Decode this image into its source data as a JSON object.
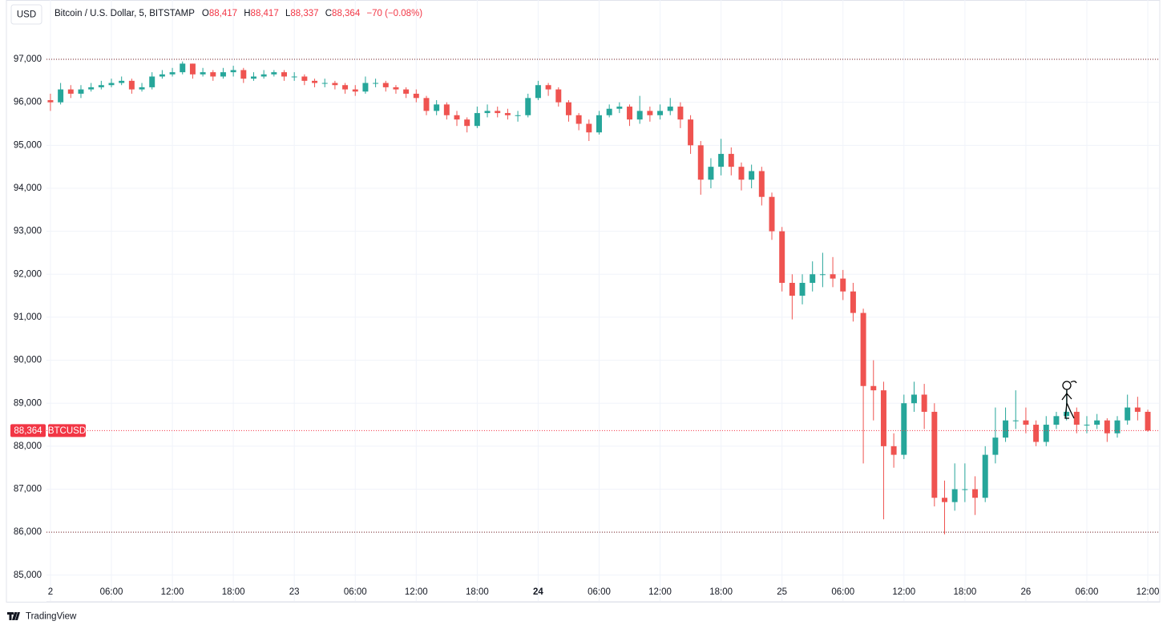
{
  "header": {
    "currency": "USD",
    "title": "Bitcoin / U.S. Dollar, 5, BITSTAMP",
    "ohlc": [
      {
        "label": "O",
        "value": "88,417"
      },
      {
        "label": "H",
        "value": "88,417"
      },
      {
        "label": "L",
        "value": "88,337"
      },
      {
        "label": "C",
        "value": "88,364"
      }
    ],
    "change": "−70 (−0.08%)"
  },
  "brand": "TradingView",
  "chart_data": {
    "type": "candlestick",
    "up_color": "#26a69a",
    "down_color": "#ef5350",
    "open": [
      96050,
      96000,
      96300,
      96200,
      96300,
      96350,
      96400,
      96450,
      96500,
      96300,
      96350,
      96600,
      96650,
      96700,
      96900,
      96650,
      96700,
      96600,
      96700,
      96750,
      96550,
      96600,
      96650,
      96700,
      96600,
      96600,
      96500,
      96450,
      96450,
      96400,
      96300,
      96250,
      96450,
      96450,
      96350,
      96300,
      96200,
      96100,
      95800,
      95950,
      95700,
      95600,
      95450,
      95750,
      95800,
      95750,
      95700,
      95700,
      96100,
      96400,
      96300,
      96000,
      95700,
      95500,
      95300,
      95700,
      95850,
      95900,
      95600,
      95800,
      95700,
      95800,
      95900,
      95600,
      95000,
      94200,
      94500,
      94800,
      94500,
      94200,
      94400,
      93800,
      93000,
      91800,
      91500,
      91800,
      92000,
      92000,
      91900,
      91600,
      91100,
      89400,
      89300,
      88000,
      87800,
      89000,
      89200,
      88800,
      86800,
      86700,
      87000,
      87000,
      86800,
      87800,
      88200,
      88600,
      88600,
      88500,
      88100,
      88500,
      88700,
      88800,
      88500,
      88500,
      88600,
      88300,
      88600,
      88900,
      88800
    ],
    "high": [
      96200,
      96450,
      96400,
      96400,
      96450,
      96500,
      96550,
      96600,
      96550,
      96450,
      96700,
      96750,
      96800,
      96950,
      96900,
      96800,
      96750,
      96800,
      96850,
      96800,
      96700,
      96750,
      96750,
      96750,
      96700,
      96650,
      96550,
      96550,
      96500,
      96450,
      96400,
      96600,
      96550,
      96500,
      96400,
      96350,
      96300,
      96150,
      96050,
      96000,
      95800,
      95650,
      95900,
      95950,
      95900,
      95850,
      95800,
      96200,
      96500,
      96450,
      96350,
      96050,
      95750,
      95600,
      95800,
      95950,
      96000,
      95950,
      96150,
      95900,
      95950,
      96100,
      96000,
      95700,
      95100,
      94700,
      95150,
      94950,
      94600,
      94550,
      94500,
      93900,
      93100,
      92000,
      92000,
      92300,
      92500,
      92400,
      92100,
      91800,
      91200,
      90000,
      89500,
      88300,
      89200,
      89500,
      89450,
      89000,
      87200,
      87600,
      87600,
      87300,
      88000,
      88900,
      88900,
      89300,
      88900,
      88600,
      88700,
      88800,
      89300,
      88900,
      88700,
      88750,
      88650,
      88700,
      89200,
      89150,
      88850
    ],
    "low": [
      95800,
      95950,
      96100,
      96100,
      96250,
      96300,
      96350,
      96400,
      96200,
      96250,
      96300,
      96550,
      96600,
      96650,
      96550,
      96600,
      96500,
      96550,
      96600,
      96450,
      96500,
      96550,
      96600,
      96500,
      96500,
      96400,
      96350,
      96350,
      96300,
      96200,
      96150,
      96200,
      96350,
      96250,
      96200,
      96100,
      96000,
      95700,
      95700,
      95600,
      95450,
      95300,
      95400,
      95650,
      95650,
      95600,
      95550,
      95650,
      96050,
      96150,
      95900,
      95550,
      95350,
      95100,
      95250,
      95650,
      95750,
      95450,
      95500,
      95550,
      95600,
      95700,
      95400,
      94800,
      93850,
      94000,
      94300,
      94300,
      93950,
      94000,
      93600,
      92800,
      91600,
      90950,
      91300,
      91600,
      91700,
      91700,
      91400,
      90900,
      87600,
      88600,
      86300,
      87500,
      87700,
      88800,
      88400,
      86600,
      85950,
      86500,
      86700,
      86400,
      86700,
      87600,
      88100,
      88400,
      88300,
      88000,
      88000,
      88400,
      88600,
      88300,
      88300,
      88400,
      88100,
      88200,
      88500,
      88600,
      88337
    ],
    "close": [
      96000,
      96300,
      96200,
      96300,
      96350,
      96400,
      96450,
      96500,
      96300,
      96350,
      96600,
      96650,
      96700,
      96900,
      96650,
      96700,
      96600,
      96700,
      96750,
      96550,
      96600,
      96650,
      96700,
      96600,
      96600,
      96500,
      96450,
      96450,
      96400,
      96300,
      96250,
      96450,
      96450,
      96350,
      96300,
      96200,
      96100,
      95800,
      95950,
      95700,
      95600,
      95450,
      95750,
      95800,
      95750,
      95700,
      95700,
      96100,
      96400,
      96300,
      96000,
      95700,
      95500,
      95300,
      95700,
      95850,
      95900,
      95600,
      95800,
      95700,
      95800,
      95900,
      95600,
      95000,
      94200,
      94500,
      94800,
      94500,
      94200,
      94400,
      93800,
      93000,
      91800,
      91500,
      91800,
      92000,
      92000,
      91900,
      91600,
      91100,
      89400,
      89300,
      88000,
      87800,
      89000,
      89200,
      88800,
      86800,
      86700,
      87000,
      87000,
      86800,
      87800,
      88200,
      88600,
      88600,
      88500,
      88100,
      88500,
      88700,
      88800,
      88500,
      88500,
      88600,
      88300,
      88600,
      88900,
      88800,
      88364
    ],
    "xlim": [
      -0.39,
      109.18
    ],
    "xticks": [
      {
        "value": 0,
        "label": "2"
      },
      {
        "value": 6,
        "label": "06:00"
      },
      {
        "value": 12,
        "label": "12:00"
      },
      {
        "value": 18,
        "label": "18:00"
      },
      {
        "value": 24,
        "label": "23"
      },
      {
        "value": 30,
        "label": "06:00"
      },
      {
        "value": 36,
        "label": "12:00"
      },
      {
        "value": 42,
        "label": "18:00"
      },
      {
        "value": 48,
        "label": "24"
      },
      {
        "value": 54,
        "label": "06:00"
      },
      {
        "value": 60,
        "label": "12:00"
      },
      {
        "value": 66,
        "label": "18:00"
      },
      {
        "value": 72,
        "label": "25"
      },
      {
        "value": 78,
        "label": "06:00"
      },
      {
        "value": 84,
        "label": "12:00"
      },
      {
        "value": 90,
        "label": "18:00"
      },
      {
        "value": 96,
        "label": "26"
      },
      {
        "value": 102,
        "label": "06:00"
      },
      {
        "value": 108,
        "label": "12:00"
      }
    ],
    "ylim": [
      84400,
      98380
    ],
    "yticks": [
      {
        "value": 85000,
        "label": "85,000"
      },
      {
        "value": 86000,
        "label": "86,000"
      },
      {
        "value": 87000,
        "label": "87,000"
      },
      {
        "value": 88000,
        "label": "88,000"
      },
      {
        "value": 89000,
        "label": "89,000"
      },
      {
        "value": 90000,
        "label": "90,000"
      },
      {
        "value": 91000,
        "label": "91,000"
      },
      {
        "value": 92000,
        "label": "92,000"
      },
      {
        "value": 93000,
        "label": "93,000"
      },
      {
        "value": 94000,
        "label": "94,000"
      },
      {
        "value": 95000,
        "label": "95,000"
      },
      {
        "value": 96000,
        "label": "96,000"
      },
      {
        "value": 97000,
        "label": "97,000"
      }
    ],
    "grid": true,
    "hlines": [
      97000,
      86000
    ],
    "last_price": {
      "value": 88364,
      "label": "88,364",
      "symbol": "BTCUSD",
      "color": "#f23645"
    }
  }
}
